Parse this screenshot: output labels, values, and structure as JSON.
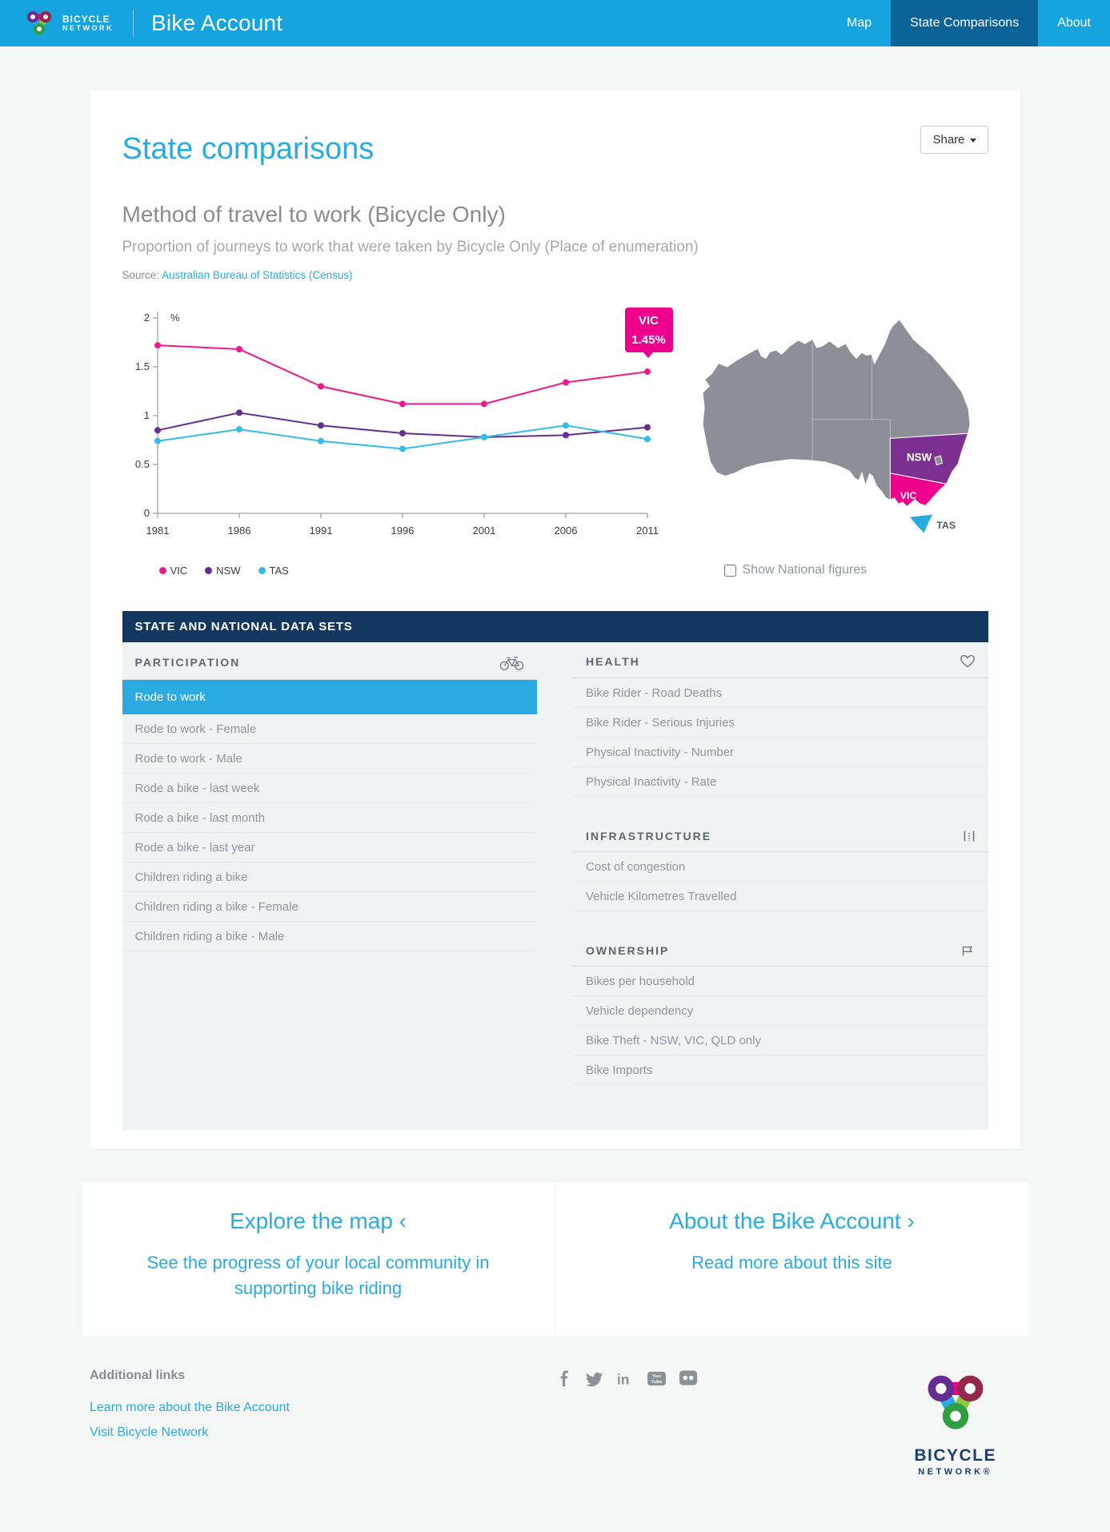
{
  "nav": {
    "brand_line1": "BICYCLE",
    "brand_line2": "NETWORK",
    "app_title": "Bike Account",
    "items": [
      {
        "label": "Map",
        "active": false
      },
      {
        "label": "State Comparisons",
        "active": true
      },
      {
        "label": "About",
        "active": false
      }
    ]
  },
  "page": {
    "title": "State comparisons",
    "share_label": "Share"
  },
  "chart_section": {
    "heading": "Method of travel to work (Bicycle Only)",
    "subheading": "Proportion of journeys to work that were taken by Bicycle Only (Place of enumeration)",
    "source_label": "Source:",
    "source_link": "Australian Bureau of Statistics (Census)",
    "show_national_label": "Show National figures",
    "national_checked": false
  },
  "chart_data": {
    "type": "line",
    "x": [
      1981,
      1986,
      1991,
      1996,
      2001,
      2006,
      2011
    ],
    "series": [
      {
        "name": "VIC",
        "color": "#ec1a8d",
        "values": [
          1.72,
          1.68,
          1.3,
          1.12,
          1.12,
          1.34,
          1.45
        ]
      },
      {
        "name": "NSW",
        "color": "#662d91",
        "values": [
          0.85,
          1.03,
          0.9,
          0.82,
          0.78,
          0.8,
          0.88
        ]
      },
      {
        "name": "TAS",
        "color": "#33bce8",
        "values": [
          0.74,
          0.86,
          0.74,
          0.66,
          0.78,
          0.9,
          0.76
        ]
      }
    ],
    "ylabel": "%",
    "ylim": [
      0,
      2
    ],
    "yticks": [
      0,
      0.5,
      1,
      1.5,
      2
    ],
    "grid": false,
    "legend_position": "bottom-left",
    "tooltip": {
      "series": "VIC",
      "x": 2011,
      "label": "VIC",
      "value": "1.45%"
    }
  },
  "map": {
    "labels": {
      "nsw": "NSW",
      "vic": "VIC",
      "tas": "TAS"
    },
    "colors": {
      "mainland": "#8e8e99",
      "nsw": "#7c3091",
      "vic": "#ec008c",
      "tas": "#29abe2"
    }
  },
  "datasets": {
    "header": "STATE AND NATIONAL DATA SETS",
    "columns": [
      {
        "sections": [
          {
            "title": "PARTICIPATION",
            "icon": "bicycle-icon",
            "items": [
              {
                "label": "Rode to work",
                "selected": true
              },
              {
                "label": "Rode to work - Female"
              },
              {
                "label": "Rode to work - Male"
              },
              {
                "label": "Rode a bike - last week"
              },
              {
                "label": "Rode a bike - last month"
              },
              {
                "label": "Rode a bike - last year"
              },
              {
                "label": "Children riding a bike"
              },
              {
                "label": "Children riding a bike - Female"
              },
              {
                "label": "Children riding a bike - Male"
              }
            ]
          }
        ]
      },
      {
        "sections": [
          {
            "title": "HEALTH",
            "icon": "heart-icon",
            "items": [
              {
                "label": "Bike Rider - Road Deaths"
              },
              {
                "label": "Bike Rider - Serious Injuries"
              },
              {
                "label": "Physical Inactivity - Number"
              },
              {
                "label": "Physical Inactivity - Rate"
              }
            ]
          },
          {
            "title": "INFRASTRUCTURE",
            "icon": "bars-icon",
            "items": [
              {
                "label": "Cost of congestion"
              },
              {
                "label": "Vehicle Kilometres Travelled"
              }
            ]
          },
          {
            "title": "OWNERSHIP",
            "icon": "flag-icon",
            "items": [
              {
                "label": "Bikes per household"
              },
              {
                "label": "Vehicle dependency"
              },
              {
                "label": "Bike Theft - NSW, VIC, QLD only"
              },
              {
                "label": "Bike Imports"
              }
            ]
          }
        ]
      }
    ]
  },
  "promos": [
    {
      "title": "Explore the map",
      "arrow": "‹",
      "subtitle": "See the progress of your local community in supporting bike riding"
    },
    {
      "title": "About the Bike Account",
      "arrow": "›",
      "subtitle": "Read more about this site"
    }
  ],
  "footer": {
    "links_title": "Additional links",
    "links": [
      "Learn more about the Bike Account",
      "Visit Bicycle Network"
    ],
    "social": [
      "facebook-icon",
      "twitter-icon",
      "linkedin-icon",
      "youtube-icon",
      "flickr-icon"
    ],
    "logo_text1": "BICYCLE",
    "logo_text2": "NETWORK®"
  },
  "colors": {
    "header": "#16a4de",
    "header_active": "#0b6296",
    "accent": "#29abe2",
    "navy_bar": "#14375f",
    "vic": "#ec008c",
    "nsw": "#662d91",
    "tas": "#33bce8"
  }
}
